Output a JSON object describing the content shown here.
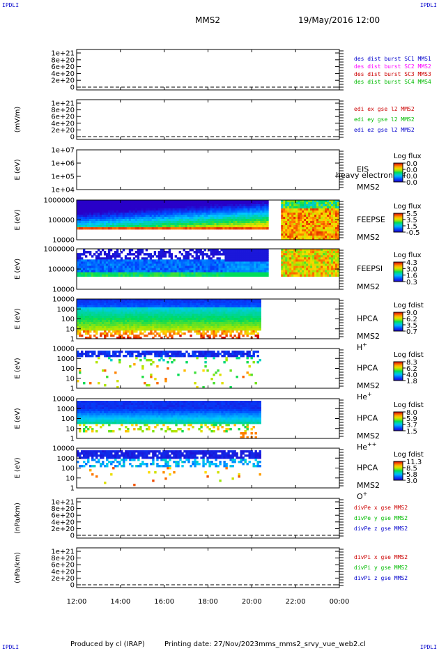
{
  "corners": {
    "tl": "IPDLI",
    "tr": "IPDLI",
    "bl": "IPDLI",
    "br": "IPDLI"
  },
  "header": {
    "spacecraft": "MMS2",
    "datetime": "19/May/2016 12:00"
  },
  "footer": {
    "producer": "Produced by cl (IRAP)",
    "print_date": "Printing date: 27/Nov/2023",
    "script_name": "mms_mms2_srvy_vue_web2.cl"
  },
  "chart_data": {
    "type": "heatmap",
    "x_ticks": [
      "12:00",
      "14:00",
      "16:00",
      "18:00",
      "20:00",
      "22:00",
      "00:00"
    ],
    "x_range_hours": [
      12,
      24
    ],
    "panels": [
      {
        "id": "des_dist",
        "kind": "lines",
        "ylabel": "",
        "yticks": [
          "1e+21",
          "8e+20",
          "6e+20",
          "4e+20",
          "2e+20",
          "0"
        ],
        "legend": [
          {
            "text": "des dist burst SC1 MMS1",
            "color": "#0000cc"
          },
          {
            "text": "des dist burst SC2 MMS2",
            "color": "#ff00ff"
          },
          {
            "text": "des dist burst SC3 MMS3",
            "color": "#cc0000"
          },
          {
            "text": "des dist burst SC4 MMS4",
            "color": "#00bb00"
          }
        ]
      },
      {
        "id": "edi",
        "kind": "lines",
        "ylabel": "(mV/m)",
        "yticks": [
          "1e+21",
          "8e+20",
          "6e+20",
          "4e+20",
          "2e+20",
          "0"
        ],
        "legend": [
          {
            "text": "edi ex gse l2 MMS2",
            "color": "#cc0000"
          },
          {
            "text": "edi ey gse l2 MMS2",
            "color": "#00bb00"
          },
          {
            "text": "edi ez gse l2 MMS2",
            "color": "#0000cc"
          }
        ]
      },
      {
        "id": "eis",
        "kind": "spec",
        "ylabel": "E (eV)",
        "yticks": [
          "1e+07",
          "1e+06",
          "1e+05",
          "1e+04"
        ],
        "instrument": "EIS",
        "sc": "MMS2",
        "species": "",
        "overlay": "heavy electron tof",
        "cbar_title": "Log flux",
        "cbar_ticks": [
          "0.0",
          "0.0",
          "0.0",
          "0.0"
        ],
        "t_end": null
      },
      {
        "id": "feepse",
        "kind": "spec",
        "ylabel": "E (eV)",
        "yticks": [
          "1000000",
          "100000",
          "10000"
        ],
        "instrument": "FEEPSE",
        "sc": "MMS2",
        "species": "",
        "overlay": "",
        "cbar_title": "Log flux",
        "cbar_ticks": [
          "5.5",
          "3.5",
          "1.5",
          "-0.5"
        ],
        "t_end": 24
      },
      {
        "id": "feepsi",
        "kind": "spec",
        "ylabel": "E (eV)",
        "yticks": [
          "1000000",
          "100000",
          "10000"
        ],
        "instrument": "FEEPSI",
        "sc": "MMS2",
        "species": "",
        "overlay": "",
        "cbar_title": "Log flux",
        "cbar_ticks": [
          "4.3",
          "3.0",
          "1.6",
          "0.3"
        ],
        "t_end": 24
      },
      {
        "id": "hpca_h",
        "kind": "spec",
        "ylabel": "E (eV)",
        "yticks": [
          "10000",
          "1000",
          "100",
          "10",
          "1"
        ],
        "instrument": "HPCA",
        "sc": "MMS2",
        "species": "H",
        "charge": "+",
        "overlay": "",
        "cbar_title": "Log fdist",
        "cbar_ticks": [
          "9.0",
          "6.2",
          "3.5",
          "0.7"
        ],
        "t_end": 20.42
      },
      {
        "id": "hpca_he",
        "kind": "spec",
        "ylabel": "E (eV)",
        "yticks": [
          "10000",
          "1000",
          "100",
          "10",
          "1"
        ],
        "instrument": "HPCA",
        "sc": "MMS2",
        "species": "He",
        "charge": "+",
        "overlay": "",
        "cbar_title": "Log fdist",
        "cbar_ticks": [
          "8.3",
          "6.2",
          "4.0",
          "1.8"
        ],
        "t_end": 20.42
      },
      {
        "id": "hpca_hepp",
        "kind": "spec",
        "ylabel": "E (eV)",
        "yticks": [
          "10000",
          "1000",
          "100",
          "10",
          "1"
        ],
        "instrument": "HPCA",
        "sc": "MMS2",
        "species": "He",
        "charge": "++",
        "overlay": "",
        "cbar_title": "Log fdist",
        "cbar_ticks": [
          "8.0",
          "5.9",
          "3.7",
          "1.5"
        ],
        "t_end": 20.42
      },
      {
        "id": "hpca_o",
        "kind": "spec",
        "ylabel": "E (eV)",
        "yticks": [
          "10000",
          "1000",
          "100",
          "10",
          "1"
        ],
        "instrument": "HPCA",
        "sc": "MMS2",
        "species": "O",
        "charge": "+",
        "overlay": "",
        "cbar_title": "Log fdist",
        "cbar_ticks": [
          "11.3",
          "8.5",
          "5.8",
          "3.0"
        ],
        "t_end": 20.42
      },
      {
        "id": "divpe",
        "kind": "lines",
        "ylabel": "(nPa/km)",
        "yticks": [
          "1e+21",
          "8e+20",
          "6e+20",
          "4e+20",
          "2e+20",
          "0"
        ],
        "legend": [
          {
            "text": "divPe x gse MMS2",
            "color": "#cc0000"
          },
          {
            "text": "divPe y gse MMS2",
            "color": "#00bb00"
          },
          {
            "text": "divPe z gse MMS2",
            "color": "#0000cc"
          }
        ]
      },
      {
        "id": "divpi",
        "kind": "lines",
        "ylabel": "(nPa/km)",
        "yticks": [
          "1e+21",
          "8e+20",
          "6e+20",
          "4e+20",
          "2e+20",
          "0"
        ],
        "legend": [
          {
            "text": "divPi x gse MMS2",
            "color": "#cc0000"
          },
          {
            "text": "divPi y gse MMS2",
            "color": "#00bb00"
          },
          {
            "text": "divPi z gse MMS2",
            "color": "#0000cc"
          }
        ]
      }
    ]
  }
}
